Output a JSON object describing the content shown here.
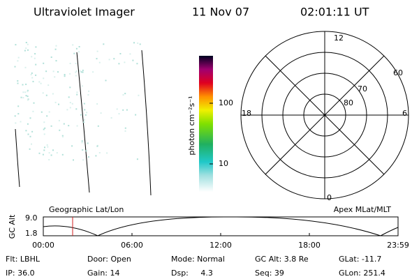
{
  "header": {
    "title": "Ultraviolet Imager",
    "date": "11 Nov 07",
    "time": "02:01:11 UT"
  },
  "colorbar": {
    "label": "photon cm⁻²s⁻¹",
    "ticks": [
      "100",
      "10"
    ]
  },
  "polar": {
    "mlt_labels": [
      "12",
      "18",
      "6",
      "0"
    ],
    "lat_labels": [
      "60",
      "70",
      "80"
    ]
  },
  "orbit": {
    "y_label": "GC Alt",
    "y_ticks": [
      "9.0",
      "1.8"
    ],
    "left_title": "Geographic Lat/Lon",
    "right_title": "Apex MLat/MLT",
    "x_ticks": [
      "00:00",
      "06:00",
      "12:00",
      "18:00",
      "23:59"
    ]
  },
  "info": [
    [
      "Flt: LBHL",
      "Door: Open",
      "Mode: Normal",
      "GC Alt: 3.8 Re",
      "GLat: -11.7"
    ],
    [
      "IP: 36.0",
      "Gain: 14",
      "Dsp:     4.3",
      "Seq: 39",
      "GLon: 251.4"
    ]
  ]
}
